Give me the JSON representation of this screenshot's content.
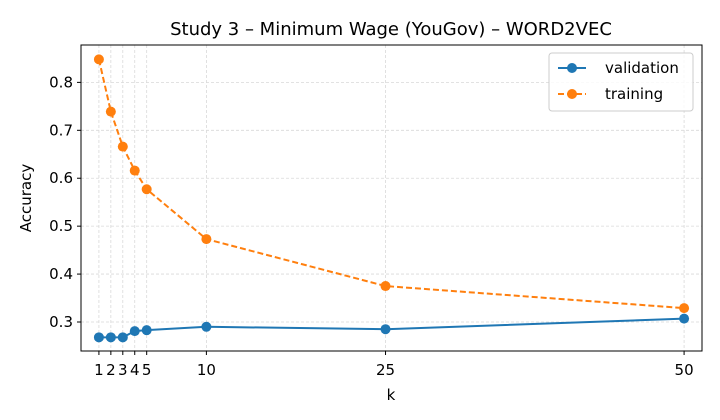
{
  "chart_data": {
    "type": "line",
    "title": "Study 3 – Minimum Wage (YouGov) – WORD2VEC",
    "xlabel": "k",
    "ylabel": "Accuracy",
    "x": [
      1,
      2,
      3,
      4,
      5,
      10,
      25,
      50
    ],
    "x_ticks": [
      1,
      2,
      3,
      4,
      5,
      10,
      25,
      50
    ],
    "xlim": [
      -0.5,
      51.5
    ],
    "ylim": [
      0.2395,
      0.878
    ],
    "y_ticks": [
      0.3,
      0.4,
      0.5,
      0.6,
      0.7,
      0.8
    ],
    "y_tick_labels": [
      "0.3",
      "0.4",
      "0.5",
      "0.6",
      "0.7",
      "0.8"
    ],
    "grid": true,
    "legend_position": "top-right",
    "series": [
      {
        "name": "validation",
        "color": "#1f77b4",
        "line_style": "solid",
        "marker": "circle",
        "values": [
          0.268,
          0.268,
          0.268,
          0.281,
          0.283,
          0.29,
          0.285,
          0.307
        ]
      },
      {
        "name": "training",
        "color": "#ff7f0e",
        "line_style": "dashed",
        "marker": "circle",
        "values": [
          0.848,
          0.739,
          0.666,
          0.616,
          0.577,
          0.473,
          0.375,
          0.329
        ]
      }
    ]
  }
}
